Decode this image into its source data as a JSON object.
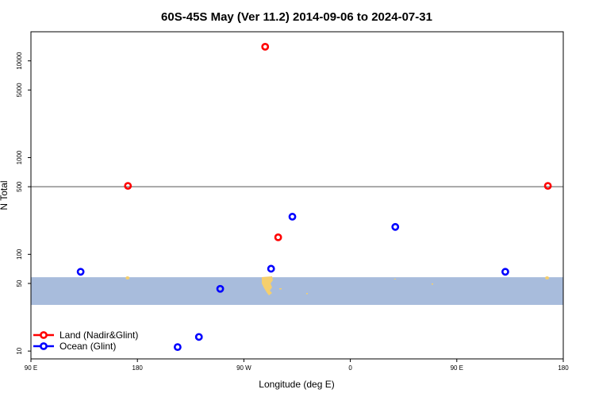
{
  "chart_data": {
    "type": "scatter",
    "title": "60S-45S May (Ver 11.2)   2014-09-06 to 2024-07-31",
    "xlabel": "Longitude (deg E)",
    "ylabel": "N Total",
    "x_ticks": [
      {
        "value": 90,
        "label": "90 E"
      },
      {
        "value": 180,
        "label": "180"
      },
      {
        "value": 270,
        "label": "90 W"
      },
      {
        "value": 360,
        "label": "0"
      },
      {
        "value": 450,
        "label": "90 E"
      },
      {
        "value": 540,
        "label": "180"
      }
    ],
    "xlim": [
      90,
      540
    ],
    "y_scale": "log",
    "ylim": [
      8.3,
      20000
    ],
    "y_ticks": [
      {
        "value": 10,
        "label": "10"
      },
      {
        "value": 50,
        "label": "50"
      },
      {
        "value": 100,
        "label": "100"
      },
      {
        "value": 500,
        "label": "500"
      },
      {
        "value": 1000,
        "label": "1000"
      },
      {
        "value": 5000,
        "label": "5000"
      },
      {
        "value": 10000,
        "label": "10000"
      }
    ],
    "reference_line_y": 500,
    "ocean_band": {
      "y_from": 30,
      "y_to": 58,
      "color": "#a8bcdc"
    },
    "land_color": "#f5cf6e",
    "series": [
      {
        "name": "Land (Nadir&Glint)",
        "color": "#ff0000",
        "x": [
          172,
          288,
          299,
          527
        ],
        "y": [
          510,
          14000,
          150,
          510
        ]
      },
      {
        "name": "Ocean (Glint)",
        "color": "#0000ff",
        "x": [
          132,
          214,
          232,
          250,
          293,
          311,
          398,
          491
        ],
        "y": [
          66,
          11,
          14,
          44,
          71,
          245,
          192,
          66
        ]
      }
    ],
    "legend_position": "bottom-left"
  }
}
